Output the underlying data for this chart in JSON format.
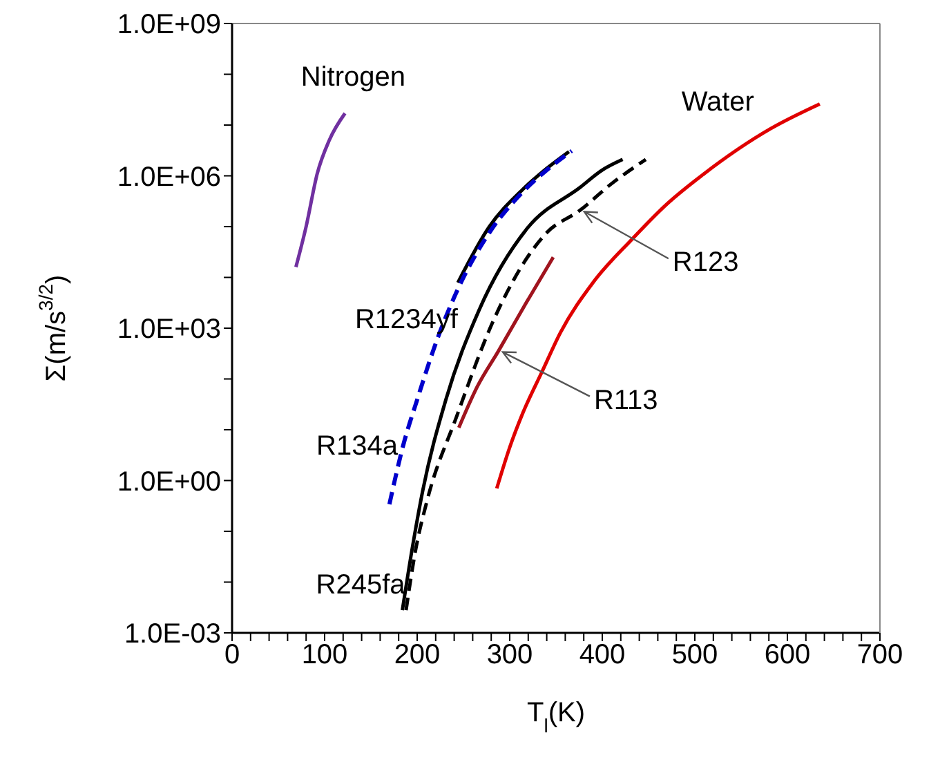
{
  "chart_data": {
    "type": "line",
    "xlabel": "T$_{l}$(K)",
    "ylabel": "Σ(m/s$^{3/2}$)",
    "log": "y",
    "marker": "none",
    "xlim": [
      0,
      700
    ],
    "xticks": [
      0,
      {
        "value": 20,
        "label": null
      },
      {
        "value": 40,
        "label": null
      },
      {
        "value": 60,
        "label": null
      },
      {
        "value": 80,
        "label": null
      },
      100,
      {
        "value": 120,
        "label": null
      },
      {
        "value": 140,
        "label": null
      },
      {
        "value": 160,
        "label": null
      },
      {
        "value": 180,
        "label": null
      },
      200,
      {
        "value": 220,
        "label": null
      },
      {
        "value": 240,
        "label": null
      },
      {
        "value": 260,
        "label": null
      },
      {
        "value": 280,
        "label": null
      },
      300,
      {
        "value": 320,
        "label": null
      },
      {
        "value": 340,
        "label": null
      },
      {
        "value": 360,
        "label": null
      },
      {
        "value": 380,
        "label": null
      },
      400,
      {
        "value": 420,
        "label": null
      },
      {
        "value": 440,
        "label": null
      },
      {
        "value": 460,
        "label": null
      },
      {
        "value": 480,
        "label": null
      },
      500,
      {
        "value": 520,
        "label": null
      },
      {
        "value": 540,
        "label": null
      },
      {
        "value": 560,
        "label": null
      },
      {
        "value": 580,
        "label": null
      },
      600,
      {
        "value": 620,
        "label": null
      },
      {
        "value": 640,
        "label": null
      },
      {
        "value": 660,
        "label": null
      },
      {
        "value": 680,
        "label": null
      },
      700
    ],
    "ylim": [
      0.001,
      1000000000
    ],
    "yticks": [
      {
        "value": 0.001,
        "label": "1.0E-03"
      },
      {
        "value": 0.01,
        "label": null
      },
      {
        "value": 0.1,
        "label": null
      },
      {
        "value": 1,
        "label": "1.0E+00"
      },
      {
        "value": 10,
        "label": null
      },
      {
        "value": 100,
        "label": null
      },
      {
        "value": 1000,
        "label": "1.0E+03"
      },
      {
        "value": 10000,
        "label": null
      },
      {
        "value": 100000,
        "label": null
      },
      {
        "value": 1000000,
        "label": "1.0E+06"
      },
      {
        "value": 10000000,
        "label": null
      },
      {
        "value": 100000000,
        "label": null
      },
      {
        "value": 1000000000,
        "label": "1.0E+09"
      }
    ],
    "series": [
      {
        "name": "Nitrogen",
        "color": "#7030a0",
        "line_style": "solid",
        "x": [
          69,
          80,
          92,
          105,
          122
        ],
        "values": [
          16000,
          100000,
          1100000,
          5000000,
          17000000
        ]
      },
      {
        "name": "R1234yf",
        "color": "#000000",
        "line_style": "solid",
        "x": [
          244,
          278,
          314,
          340,
          364
        ],
        "values": [
          7900,
          100000,
          540000,
          1400000,
          3000000
        ]
      },
      {
        "name": "R134a",
        "color": "#0000cc",
        "line_style": "dashed",
        "x": [
          170,
          185,
          200,
          222,
          244,
          278,
          314,
          340,
          367
        ],
        "values": [
          0.34,
          5,
          39,
          630,
          5900,
          76000,
          480000,
          1300000,
          3100000
        ]
      },
      {
        "name": "R245fa",
        "color": "#000000",
        "line_style": "solid",
        "x": [
          184,
          195,
          206,
          231,
          267,
          319,
          376,
          400,
          422
        ],
        "values": [
          0.0028,
          0.05,
          0.63,
          39,
          2300,
          93000,
          590000,
          1300000,
          2100000
        ]
      },
      {
        "name": "R123",
        "color": "#000000",
        "line_style": "dashed",
        "x": [
          188,
          198,
          211,
          242,
          283,
          340,
          376,
          410,
          447
        ],
        "values": [
          0.0028,
          0.04,
          0.42,
          17,
          1500,
          76000,
          210000,
          700000,
          2100000
        ]
      },
      {
        "name": "R113",
        "color": "#a0141e",
        "line_style": "solid",
        "x": [
          245,
          265,
          288,
          318,
          347
        ],
        "values": [
          11,
          71,
          360,
          3200,
          25000
        ]
      },
      {
        "name": "Water",
        "color": "#e00000",
        "line_style": "solid",
        "x": [
          286,
          300,
          314,
          335,
          355,
          390,
          432,
          470,
          510,
          582,
          635
        ],
        "values": [
          0.7,
          4.5,
          21,
          140,
          830,
          7900,
          56000,
          280000,
          1100000,
          8500000,
          26000000
        ]
      }
    ]
  }
}
